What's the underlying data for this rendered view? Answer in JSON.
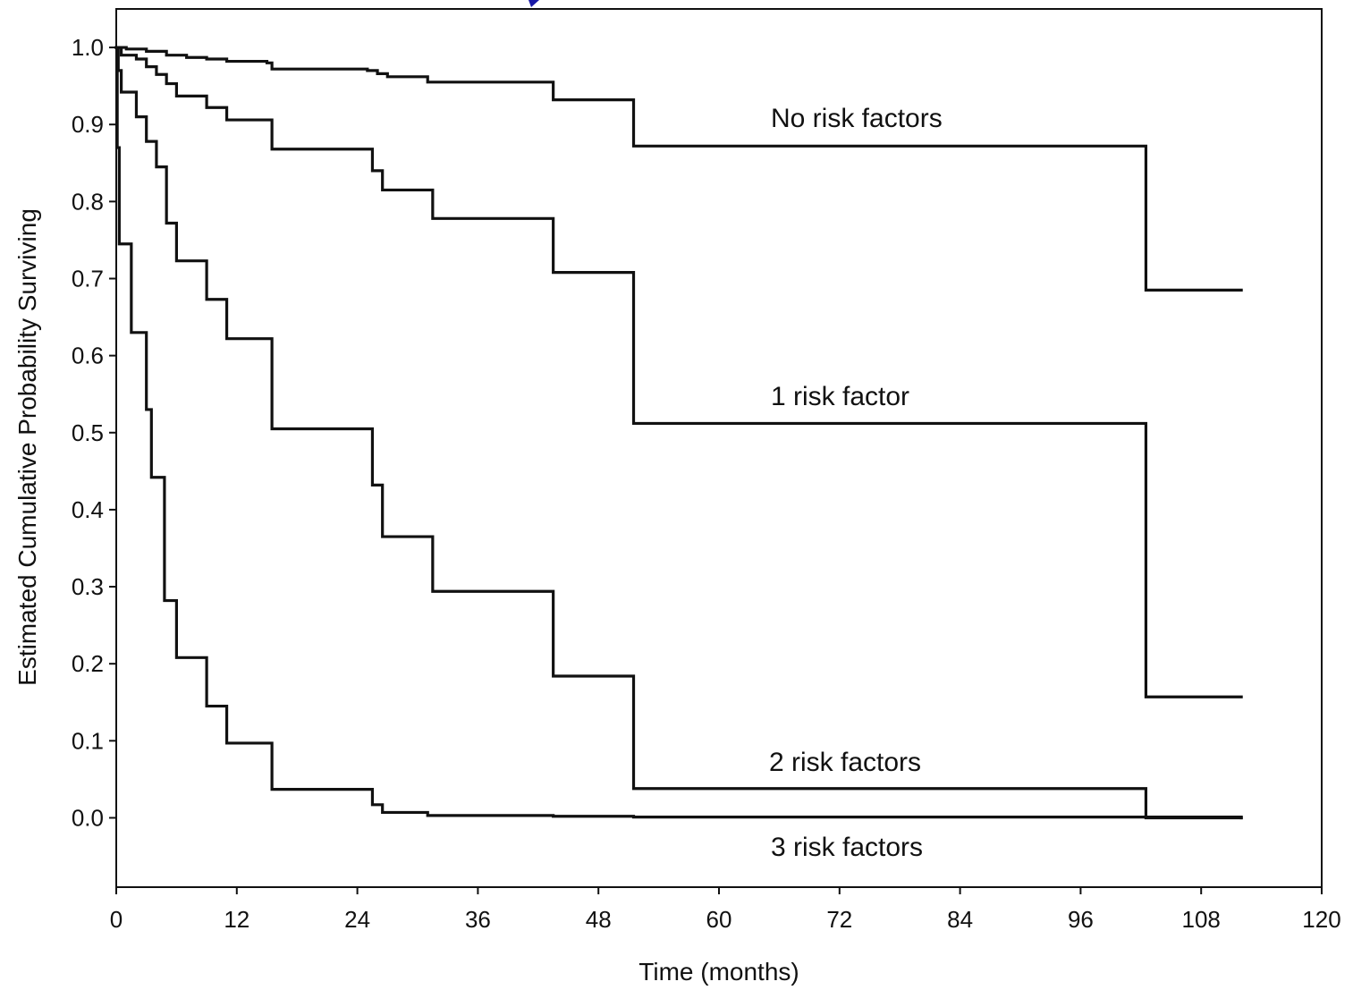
{
  "chart_data": {
    "type": "line",
    "title": "",
    "xlabel": "Time (months)",
    "ylabel": "Estimated Cumulative Probability Surviving",
    "xlim": [
      0,
      120
    ],
    "ylim": [
      -0.09,
      1.05
    ],
    "x_ticks": [
      0,
      12,
      24,
      36,
      48,
      60,
      72,
      84,
      96,
      108,
      120
    ],
    "x_tick_labels": [
      "0",
      "12",
      "24",
      "36",
      "48",
      "60",
      "72",
      "84",
      "96",
      "108",
      "120"
    ],
    "y_ticks": [
      0.0,
      0.1,
      0.2,
      0.3,
      0.4,
      0.5,
      0.6,
      0.7,
      0.8,
      0.9,
      1.0
    ],
    "y_tick_labels": [
      "0.0",
      "0.1",
      "0.2",
      "0.3",
      "0.4",
      "0.5",
      "0.6",
      "0.7",
      "0.8",
      "0.9",
      "1.0"
    ],
    "grid": false,
    "legend": "inline labels",
    "line_color": "#111111",
    "series": [
      {
        "name": "No risk factors",
        "step": true,
        "points": [
          [
            0,
            1.0
          ],
          [
            1,
            0.998
          ],
          [
            3,
            0.995
          ],
          [
            5,
            0.99
          ],
          [
            7,
            0.987
          ],
          [
            9,
            0.985
          ],
          [
            11,
            0.982
          ],
          [
            15,
            0.98
          ],
          [
            15.5,
            0.972
          ],
          [
            25,
            0.97
          ],
          [
            26,
            0.966
          ],
          [
            27,
            0.962
          ],
          [
            31,
            0.955
          ],
          [
            43.5,
            0.952
          ],
          [
            43.5,
            0.932
          ],
          [
            51.5,
            0.932
          ],
          [
            51.5,
            0.872
          ],
          [
            102.5,
            0.872
          ],
          [
            102.5,
            0.685
          ],
          [
            112,
            0.685
          ]
        ]
      },
      {
        "name": "1 risk factor",
        "step": true,
        "points": [
          [
            0,
            1.0
          ],
          [
            0.5,
            0.99
          ],
          [
            2,
            0.985
          ],
          [
            3,
            0.975
          ],
          [
            4,
            0.965
          ],
          [
            5,
            0.953
          ],
          [
            6,
            0.937
          ],
          [
            9,
            0.922
          ],
          [
            11,
            0.906
          ],
          [
            15,
            0.906
          ],
          [
            15.5,
            0.868
          ],
          [
            25,
            0.868
          ],
          [
            25.5,
            0.84
          ],
          [
            26.5,
            0.815
          ],
          [
            31,
            0.815
          ],
          [
            31.5,
            0.778
          ],
          [
            43.5,
            0.778
          ],
          [
            43.5,
            0.708
          ],
          [
            51.5,
            0.708
          ],
          [
            51.5,
            0.512
          ],
          [
            102.5,
            0.512
          ],
          [
            102.5,
            0.157
          ],
          [
            112,
            0.157
          ]
        ]
      },
      {
        "name": "2 risk factors",
        "step": true,
        "points": [
          [
            0,
            1.0
          ],
          [
            0.2,
            0.97
          ],
          [
            0.5,
            0.942
          ],
          [
            2,
            0.91
          ],
          [
            3,
            0.878
          ],
          [
            4,
            0.845
          ],
          [
            5,
            0.772
          ],
          [
            6,
            0.723
          ],
          [
            9,
            0.673
          ],
          [
            11,
            0.622
          ],
          [
            15,
            0.622
          ],
          [
            15.5,
            0.505
          ],
          [
            25,
            0.505
          ],
          [
            25.5,
            0.432
          ],
          [
            26.5,
            0.365
          ],
          [
            31,
            0.365
          ],
          [
            31.5,
            0.294
          ],
          [
            43.5,
            0.294
          ],
          [
            43.5,
            0.184
          ],
          [
            51.5,
            0.184
          ],
          [
            51.5,
            0.038
          ],
          [
            102.5,
            0.038
          ],
          [
            102.5,
            0.0
          ],
          [
            112,
            0.0
          ]
        ]
      },
      {
        "name": "3 risk factors",
        "step": true,
        "points": [
          [
            0,
            1.0
          ],
          [
            0.1,
            0.87
          ],
          [
            0.3,
            0.745
          ],
          [
            1.5,
            0.63
          ],
          [
            3,
            0.53
          ],
          [
            3.5,
            0.442
          ],
          [
            4.8,
            0.282
          ],
          [
            6,
            0.208
          ],
          [
            9,
            0.145
          ],
          [
            11,
            0.097
          ],
          [
            15,
            0.097
          ],
          [
            15.5,
            0.037
          ],
          [
            25,
            0.037
          ],
          [
            25.5,
            0.017
          ],
          [
            26.5,
            0.007
          ],
          [
            31,
            0.003
          ],
          [
            43.5,
            0.002
          ],
          [
            51.5,
            0.001
          ],
          [
            112,
            0.0
          ]
        ]
      }
    ]
  }
}
